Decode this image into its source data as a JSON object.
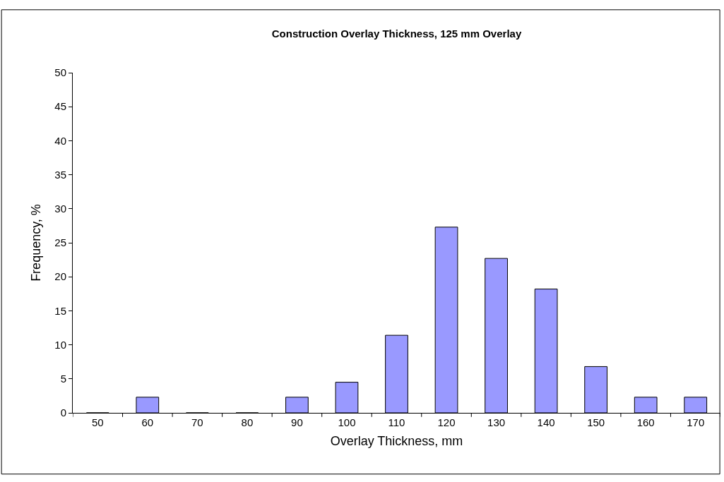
{
  "chart_data": {
    "type": "bar",
    "title": "Construction Overlay Thickness, 125 mm Overlay",
    "xlabel": "Overlay Thickness, mm",
    "ylabel": "Frequency, %",
    "categories": [
      "50",
      "60",
      "70",
      "80",
      "90",
      "100",
      "110",
      "120",
      "130",
      "140",
      "150",
      "160",
      "170"
    ],
    "values": [
      0,
      2.3,
      0,
      0,
      2.3,
      4.5,
      11.4,
      27.3,
      22.7,
      18.2,
      6.8,
      2.3,
      2.3
    ],
    "color": "#9999ff",
    "ylim": [
      0,
      50
    ],
    "yticks": [
      0,
      5,
      10,
      15,
      20,
      25,
      30,
      35,
      40,
      45,
      50
    ]
  }
}
